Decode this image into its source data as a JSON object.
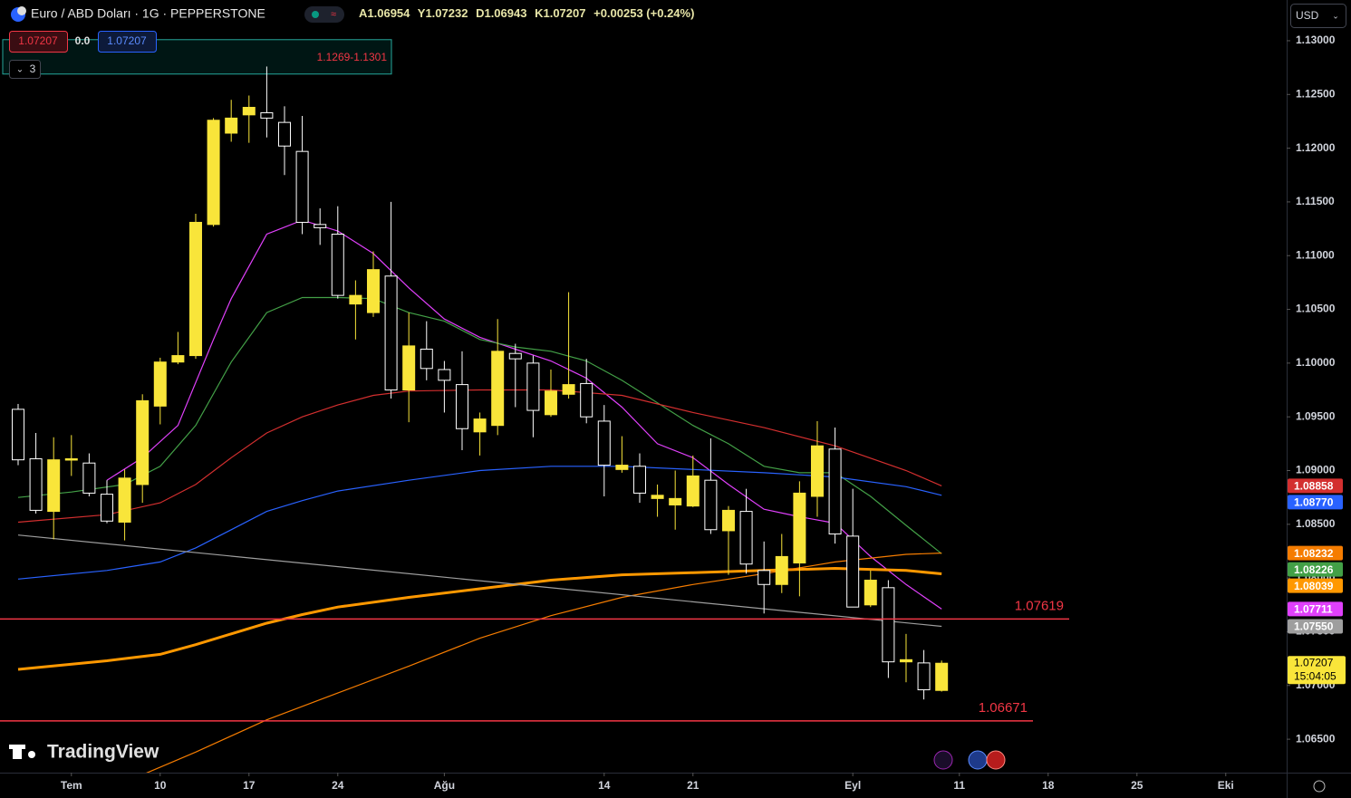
{
  "chart_data": {
    "type": "candlestick",
    "header": {
      "title": "Euro / ABD Doları · 1G · PEPPERSTONE",
      "ohlc_labels": [
        "A",
        "Y",
        "D",
        "K"
      ],
      "change": "+0.00253 (+0.24%)",
      "spread": "0.0",
      "indicator_count": "3",
      "currency": "USD",
      "countdown": "15:04:05",
      "brand": "TradingView"
    },
    "open": [
      1.0957,
      1.0911,
      1.0862,
      1.091,
      1.0907,
      1.0878,
      1.0852,
      1.0887,
      1.096,
      1.1001,
      1.1007,
      1.1129,
      1.1214,
      1.1231,
      1.1233,
      1.1224,
      1.1197,
      1.1129,
      1.112,
      1.1055,
      1.1047,
      1.1081,
      1.0975,
      1.1013,
      1.0994,
      1.098,
      1.0936,
      1.0942,
      1.1009,
      1.1,
      1.0952,
      1.0971,
      1.0981,
      1.0946,
      1.0901,
      1.0904,
      1.0874,
      1.0868,
      1.0867,
      1.0891,
      1.0844,
      1.0862,
      1.0807,
      1.0794,
      1.0814,
      1.0876,
      1.092,
      1.0839,
      1.0775,
      1.0791,
      1.0722,
      1.0721,
      1.06954
    ],
    "high": [
      1.0962,
      1.0935,
      1.0931,
      1.0933,
      1.0916,
      1.0891,
      1.0901,
      1.0971,
      1.1005,
      1.1029,
      1.1139,
      1.1228,
      1.1245,
      1.1249,
      1.1276,
      1.1239,
      1.123,
      1.1144,
      1.1146,
      1.1077,
      1.1104,
      1.115,
      1.1047,
      1.1039,
      1.1002,
      1.1011,
      1.0954,
      1.1041,
      1.1018,
      1.1007,
      1.0994,
      1.1066,
      1.1004,
      1.0961,
      1.0932,
      1.0916,
      1.0887,
      1.09,
      1.0914,
      1.093,
      1.0867,
      1.0883,
      1.0834,
      1.0841,
      1.089,
      1.0946,
      1.094,
      1.0883,
      1.0807,
      1.0798,
      1.0748,
      1.0733,
      1.07232
    ],
    "low": [
      1.0905,
      1.086,
      1.0836,
      1.0895,
      1.0876,
      1.0851,
      1.0835,
      1.087,
      1.0943,
      1.0999,
      1.1004,
      1.1127,
      1.1206,
      1.1205,
      1.121,
      1.1175,
      1.112,
      1.111,
      1.106,
      1.1022,
      1.1043,
      1.0967,
      1.0945,
      1.0984,
      1.0954,
      1.0919,
      1.0914,
      1.0933,
      1.0959,
      1.0931,
      1.095,
      1.0967,
      1.0944,
      1.0876,
      1.0898,
      1.087,
      1.0857,
      1.0845,
      1.0866,
      1.0841,
      1.0803,
      1.0804,
      1.0767,
      1.0786,
      1.0783,
      1.0857,
      1.0832,
      1.0773,
      1.0773,
      1.0707,
      1.0703,
      1.0687,
      1.06943
    ],
    "close": [
      1.091,
      1.0863,
      1.091,
      1.0911,
      1.0879,
      1.0853,
      1.0893,
      1.0965,
      1.1001,
      1.1007,
      1.1131,
      1.1226,
      1.1228,
      1.1238,
      1.1228,
      1.1202,
      1.1131,
      1.1126,
      1.1063,
      1.1063,
      1.1087,
      1.0975,
      1.1016,
      1.0995,
      1.0984,
      1.0939,
      1.0948,
      1.1011,
      1.1004,
      1.0956,
      1.0974,
      1.098,
      1.095,
      1.0905,
      1.0905,
      1.0879,
      1.0877,
      1.0874,
      1.0895,
      1.0845,
      1.0863,
      1.0813,
      1.0794,
      1.082,
      1.0879,
      1.0923,
      1.0841,
      1.0773,
      1.0798,
      1.0722,
      1.0724,
      1.0696,
      1.07207
    ],
    "up_color": "#f9e53a",
    "down_color": "#ffffff",
    "series": [
      {
        "color": "#e040fb",
        "x": [
          5,
          7,
          9,
          11,
          12,
          14,
          16,
          18,
          20,
          22,
          24,
          26,
          28,
          30,
          32,
          34,
          36,
          38,
          40,
          42,
          44,
          46,
          48,
          50,
          52
        ],
        "values": [
          1.0891,
          1.0912,
          1.0942,
          1.1022,
          1.106,
          1.112,
          1.1133,
          1.1123,
          1.1102,
          1.107,
          1.1041,
          1.1024,
          1.1013,
          1.1002,
          1.0986,
          1.0959,
          1.0925,
          1.0912,
          1.0887,
          1.0864,
          1.0857,
          1.0851,
          1.082,
          1.0794,
          1.07711
        ],
        "end_label": "1.07711"
      },
      {
        "color": "#43a047",
        "x": [
          0,
          3,
          6,
          8,
          10,
          12,
          14,
          16,
          18,
          20,
          22,
          24,
          26,
          28,
          30,
          32,
          34,
          36,
          38,
          40,
          42,
          44,
          46,
          48,
          50,
          52
        ],
        "values": [
          1.0875,
          1.088,
          1.0887,
          1.0904,
          1.0942,
          1.1001,
          1.1047,
          1.1061,
          1.1061,
          1.106,
          1.1047,
          1.1039,
          1.1022,
          1.1015,
          1.1011,
          1.1002,
          1.0984,
          1.0963,
          1.0942,
          1.0925,
          1.0904,
          1.0898,
          1.0898,
          1.0876,
          1.0849,
          1.08226
        ],
        "end_label": "1.08226"
      },
      {
        "color": "#d32f2f",
        "x": [
          0,
          5,
          8,
          10,
          12,
          14,
          16,
          18,
          20,
          22,
          26,
          30,
          34,
          38,
          42,
          46,
          50,
          52
        ],
        "values": [
          1.0852,
          1.0859,
          1.087,
          1.0887,
          1.0912,
          1.0935,
          1.095,
          1.0961,
          1.097,
          1.0974,
          1.0975,
          1.0975,
          1.097,
          1.0954,
          1.094,
          1.0923,
          1.09,
          1.08858
        ],
        "end_label": "1.08858"
      },
      {
        "color": "#2962ff",
        "x": [
          0,
          5,
          8,
          10,
          12,
          14,
          16,
          18,
          22,
          26,
          30,
          34,
          38,
          42,
          46,
          50,
          52
        ],
        "values": [
          1.0799,
          1.0807,
          1.0815,
          1.0828,
          1.0845,
          1.0862,
          1.0872,
          1.0881,
          1.0891,
          1.09,
          1.0904,
          1.0904,
          1.0901,
          1.0898,
          1.0894,
          1.0885,
          1.0877
        ],
        "end_label": "1.08770"
      },
      {
        "color": "#ff9800",
        "width": 3,
        "x": [
          0,
          5,
          8,
          10,
          12,
          14,
          16,
          18,
          22,
          26,
          30,
          34,
          38,
          42,
          46,
          50,
          52
        ],
        "values": [
          1.0715,
          1.0723,
          1.0729,
          1.0738,
          1.0748,
          1.0758,
          1.0766,
          1.0773,
          1.0782,
          1.079,
          1.0798,
          1.0803,
          1.0805,
          1.0807,
          1.0809,
          1.0807,
          1.08039
        ],
        "end_label": "1.08039"
      },
      {
        "color": "#f57c00",
        "x": [
          7,
          10,
          14,
          18,
          22,
          26,
          30,
          34,
          38,
          42,
          46,
          50,
          52
        ],
        "values": [
          1.0617,
          1.0638,
          1.0668,
          1.0693,
          1.0718,
          1.0744,
          1.0765,
          1.0782,
          1.0794,
          1.0804,
          1.0815,
          1.0822,
          1.08232
        ],
        "end_label": "1.08232"
      },
      {
        "color": "#9e9e9e",
        "x": [
          0,
          52
        ],
        "values": [
          1.084,
          1.0755
        ],
        "end_label": "1.07550"
      }
    ],
    "hlines": [
      {
        "value": 1.07619,
        "color": "#f23645"
      },
      {
        "value": 1.06671,
        "color": "#f23645"
      }
    ],
    "range_box": {
      "top": 1.1301,
      "bottom": 1.1269,
      "label": "1.1269-1.1301"
    },
    "ylim": [
      1.06189,
      1.13379
    ],
    "yticks": [
      {
        "value": 1.065,
        "label": "1.06500"
      },
      {
        "value": 1.07,
        "label": "1.07000"
      },
      {
        "value": 1.075,
        "label": "1.07500"
      },
      {
        "value": 1.08,
        "label": "1.08000"
      },
      {
        "value": 1.085,
        "label": "1.08500"
      },
      {
        "value": 1.09,
        "label": "1.09000"
      },
      {
        "value": 1.095,
        "label": "1.09500"
      },
      {
        "value": 1.1,
        "label": "1.10000"
      },
      {
        "value": 1.105,
        "label": "1.10500"
      },
      {
        "value": 1.11,
        "label": "1.11000"
      },
      {
        "value": 1.115,
        "label": "1.11500"
      },
      {
        "value": 1.12,
        "label": "1.12000"
      },
      {
        "value": 1.125,
        "label": "1.12500"
      },
      {
        "value": 1.13,
        "label": "1.13000"
      }
    ],
    "xlim": [
      -1.02,
      71.43
    ],
    "xticks": [
      {
        "value": 3,
        "label": "Tem"
      },
      {
        "value": 8,
        "label": "10"
      },
      {
        "value": 13,
        "label": "17"
      },
      {
        "value": 18,
        "label": "24"
      },
      {
        "value": 24,
        "label": "Ağu"
      },
      {
        "value": 33,
        "label": "14"
      },
      {
        "value": 38,
        "label": "21"
      },
      {
        "value": 47,
        "label": "Eyl"
      },
      {
        "value": 53,
        "label": "11"
      },
      {
        "value": 58,
        "label": "18"
      },
      {
        "value": 63,
        "label": "25"
      },
      {
        "value": 68,
        "label": "Eki"
      }
    ]
  }
}
